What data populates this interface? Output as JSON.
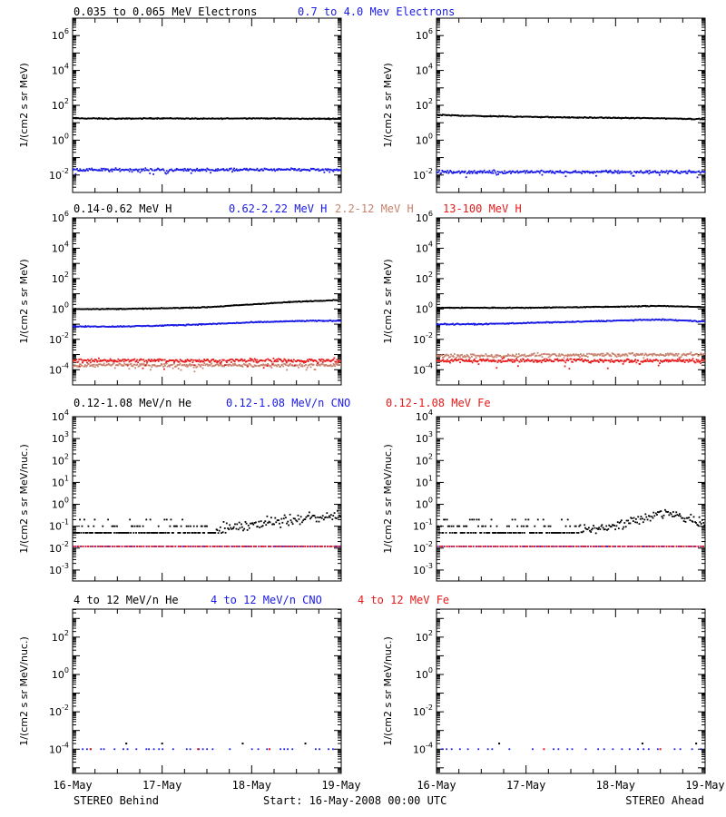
{
  "colors": {
    "black": "#000000",
    "blue": "#1a1ae6",
    "tan": "#c8826e",
    "red": "#e61a1a"
  },
  "footer": {
    "left": "STEREO Behind",
    "center": "Start: 16-May-2008 00:00 UTC",
    "right": "STEREO Ahead"
  },
  "x_axis": {
    "tick_labels": [
      "16-May",
      "17-May",
      "18-May",
      "19-May"
    ],
    "range_days": [
      0,
      3
    ]
  },
  "rows": [
    {
      "legend": [
        {
          "text": "0.035 to 0.065 MeV Electrons",
          "color": "black"
        },
        {
          "text": "0.7 to 4.0 Mev Electrons",
          "color": "blue"
        }
      ],
      "ylabel": "1/(cm2 s sr MeV)",
      "ylim_exp": [
        -3,
        7
      ],
      "tick_exps": [
        -2,
        0,
        2,
        4,
        6
      ]
    },
    {
      "legend": [
        {
          "text": "0.14-0.62 MeV H",
          "color": "black"
        },
        {
          "text": "0.62-2.22 MeV H",
          "color": "blue"
        },
        {
          "text": "2.2-12 MeV H",
          "color": "tan"
        },
        {
          "text": "13-100 MeV H",
          "color": "red"
        }
      ],
      "ylabel": "1/(cm2 s sr MeV)",
      "ylim_exp": [
        -5,
        6
      ],
      "tick_exps": [
        -4,
        -2,
        0,
        2,
        4,
        6
      ]
    },
    {
      "legend": [
        {
          "text": "0.12-1.08 MeV/n He",
          "color": "black"
        },
        {
          "text": "0.12-1.08 MeV/n CNO",
          "color": "blue"
        },
        {
          "text": "0.12-1.08 MeV Fe",
          "color": "red"
        }
      ],
      "ylabel": "1/(cm2 s sr MeV/nuc.)",
      "ylim_exp": [
        -3.5,
        4
      ],
      "tick_exps": [
        -3,
        -2,
        -1,
        0,
        1,
        2,
        3,
        4
      ]
    },
    {
      "legend": [
        {
          "text": "4 to 12 MeV/n He",
          "color": "black"
        },
        {
          "text": "4 to 12 MeV/n CNO",
          "color": "blue"
        },
        {
          "text": "4 to 12 MeV Fe",
          "color": "red"
        }
      ],
      "ylabel": "1/(cm2 s sr MeV/nuc.)",
      "ylim_exp": [
        -5.3,
        3.5
      ],
      "tick_exps": [
        -4,
        -2,
        0,
        2
      ]
    }
  ],
  "chart_data": [
    {
      "type": "scatter",
      "panel": "behind",
      "row": 0,
      "ylog": true,
      "ylim": [
        0.001,
        10000000
      ],
      "x_units": "days since 16-May-2008 00:00 UTC",
      "series": [
        {
          "name": "0.035 to 0.065 MeV Electrons",
          "color": "black",
          "x": [
            0,
            0.5,
            1,
            1.5,
            2,
            2.5,
            3
          ],
          "y": [
            18,
            17,
            18,
            17,
            18,
            17,
            17
          ]
        },
        {
          "name": "0.7 to 4.0 Mev Electrons",
          "color": "blue",
          "x": [
            0,
            0.5,
            1,
            1.5,
            2,
            2.5,
            3
          ],
          "y": [
            0.02,
            0.02,
            0.02,
            0.02,
            0.02,
            0.02,
            0.02
          ]
        }
      ]
    },
    {
      "type": "scatter",
      "panel": "ahead",
      "row": 0,
      "ylog": true,
      "ylim": [
        0.001,
        10000000
      ],
      "x_units": "days since 16-May-2008 00:00 UTC",
      "series": [
        {
          "name": "0.035 to 0.065 MeV Electrons",
          "color": "black",
          "x": [
            0,
            0.5,
            1,
            1.5,
            2,
            2.5,
            3
          ],
          "y": [
            28,
            24,
            22,
            20,
            19,
            18,
            16
          ]
        },
        {
          "name": "0.7 to 4.0 Mev Electrons",
          "color": "blue",
          "x": [
            0,
            0.5,
            1,
            1.5,
            2,
            2.5,
            3
          ],
          "y": [
            0.015,
            0.015,
            0.015,
            0.015,
            0.015,
            0.015,
            0.015
          ]
        }
      ]
    },
    {
      "type": "scatter",
      "panel": "behind",
      "row": 1,
      "ylog": true,
      "ylim": [
        1e-05,
        1000000
      ],
      "x_units": "days since 16-May-2008 00:00 UTC",
      "series": [
        {
          "name": "0.14-0.62 MeV H",
          "color": "black",
          "x": [
            0,
            0.5,
            1,
            1.5,
            2,
            2.5,
            3
          ],
          "y": [
            1.0,
            1.0,
            1.1,
            1.3,
            2.0,
            3.0,
            4.0
          ]
        },
        {
          "name": "0.62-2.22 MeV H",
          "color": "blue",
          "x": [
            0,
            0.5,
            1,
            1.5,
            2,
            2.5,
            3
          ],
          "y": [
            0.07,
            0.07,
            0.08,
            0.1,
            0.13,
            0.16,
            0.17
          ]
        },
        {
          "name": "2.2-12 MeV H",
          "color": "tan",
          "x": [
            0,
            0.5,
            1,
            1.5,
            2,
            2.5,
            3
          ],
          "y": [
            0.0002,
            0.0002,
            0.0002,
            0.0002,
            0.0002,
            0.0002,
            0.0002
          ]
        },
        {
          "name": "13-100 MeV H",
          "color": "red",
          "x": [
            0,
            0.5,
            1,
            1.5,
            2,
            2.5,
            3
          ],
          "y": [
            0.0004,
            0.0004,
            0.0004,
            0.0004,
            0.0004,
            0.0004,
            0.0004
          ]
        }
      ]
    },
    {
      "type": "scatter",
      "panel": "ahead",
      "row": 1,
      "ylog": true,
      "ylim": [
        1e-05,
        1000000
      ],
      "x_units": "days since 16-May-2008 00:00 UTC",
      "series": [
        {
          "name": "0.14-0.62 MeV H",
          "color": "black",
          "x": [
            0,
            0.5,
            1,
            1.5,
            2,
            2.5,
            3
          ],
          "y": [
            1.2,
            1.2,
            1.2,
            1.3,
            1.4,
            1.6,
            1.3
          ]
        },
        {
          "name": "0.62-2.22 MeV H",
          "color": "blue",
          "x": [
            0,
            0.5,
            1,
            1.5,
            2,
            2.5,
            3
          ],
          "y": [
            0.1,
            0.1,
            0.12,
            0.14,
            0.17,
            0.2,
            0.15
          ]
        },
        {
          "name": "2.2-12 MeV H",
          "color": "tan",
          "x": [
            0,
            0.5,
            1,
            1.5,
            2,
            2.5,
            3
          ],
          "y": [
            0.0008,
            0.0008,
            0.0009,
            0.0009,
            0.001,
            0.001,
            0.001
          ]
        },
        {
          "name": "13-100 MeV H",
          "color": "red",
          "x": [
            0,
            0.5,
            1,
            1.5,
            2,
            2.5,
            3
          ],
          "y": [
            0.0004,
            0.0004,
            0.0004,
            0.0004,
            0.0004,
            0.0004,
            0.0004
          ]
        }
      ]
    },
    {
      "type": "scatter",
      "panel": "behind",
      "row": 2,
      "ylog": true,
      "ylim": [
        0.0003,
        10000
      ],
      "x_units": "days since 16-May-2008 00:00 UTC",
      "series": [
        {
          "name": "0.12-1.08 MeV/n He",
          "color": "black",
          "x": [
            0,
            0.5,
            1,
            1.5,
            2,
            2.5,
            3
          ],
          "y": [
            0.05,
            0.05,
            0.05,
            0.07,
            0.12,
            0.2,
            0.3
          ]
        },
        {
          "name": "0.12-1.08 MeV/n CNO",
          "color": "blue",
          "x": [
            0,
            0.5,
            1,
            1.5,
            2,
            2.5,
            3
          ],
          "y": [
            0.012,
            0.012,
            0.012,
            0.012,
            0.012,
            0.012,
            0.012
          ]
        },
        {
          "name": "0.12-1.08 MeV Fe",
          "color": "red",
          "x": [
            0,
            0.5,
            1,
            1.5,
            2,
            2.5,
            3
          ],
          "y": [
            0.012,
            0.012,
            0.012,
            0.012,
            0.012,
            0.012,
            0.012
          ]
        }
      ]
    },
    {
      "type": "scatter",
      "panel": "ahead",
      "row": 2,
      "ylog": true,
      "ylim": [
        0.0003,
        10000
      ],
      "x_units": "days since 16-May-2008 00:00 UTC",
      "series": [
        {
          "name": "0.12-1.08 MeV/n He",
          "color": "black",
          "x": [
            0,
            0.5,
            1,
            1.5,
            2,
            2.5,
            3
          ],
          "y": [
            0.05,
            0.05,
            0.05,
            0.06,
            0.1,
            0.4,
            0.15
          ]
        },
        {
          "name": "0.12-1.08 MeV/n CNO",
          "color": "blue",
          "x": [
            0,
            0.5,
            1,
            1.5,
            2,
            2.5,
            3
          ],
          "y": [
            0.012,
            0.012,
            0.012,
            0.012,
            0.012,
            0.012,
            0.012
          ]
        },
        {
          "name": "0.12-1.08 MeV Fe",
          "color": "red",
          "x": [
            0,
            0.5,
            1,
            1.5,
            2,
            2.5,
            3
          ],
          "y": [
            0.012,
            0.012,
            0.012,
            0.012,
            0.012,
            0.012,
            0.012
          ]
        }
      ]
    },
    {
      "type": "scatter",
      "panel": "behind",
      "row": 3,
      "ylog": true,
      "ylim": [
        5e-06,
        3000
      ],
      "x_units": "days since 16-May-2008 00:00 UTC",
      "series": [
        {
          "name": "4 to 12 MeV/n He",
          "color": "black",
          "x": [
            0.6,
            1.0,
            1.9,
            2.6
          ],
          "y": [
            0.0002,
            0.0002,
            0.0002,
            0.0002
          ]
        },
        {
          "name": "4 to 12 MeV/n CNO",
          "color": "blue",
          "x": [
            0,
            0.5,
            1,
            1.5,
            2,
            2.5,
            3
          ],
          "y": [
            0.0001,
            0.0001,
            0.0001,
            0.0001,
            0.0001,
            0.0001,
            0.0001
          ]
        },
        {
          "name": "4 to 12 MeV Fe",
          "color": "red",
          "x": [
            0.2,
            1.4,
            2.2
          ],
          "y": [
            0.0001,
            0.0001,
            0.0001
          ]
        }
      ]
    },
    {
      "type": "scatter",
      "panel": "ahead",
      "row": 3,
      "ylog": true,
      "ylim": [
        5e-06,
        3000
      ],
      "x_units": "days since 16-May-2008 00:00 UTC",
      "series": [
        {
          "name": "4 to 12 MeV/n He",
          "color": "black",
          "x": [
            0.7,
            2.3,
            2.9
          ],
          "y": [
            0.0002,
            0.0002,
            0.0002
          ]
        },
        {
          "name": "4 to 12 MeV/n CNO",
          "color": "blue",
          "x": [
            0,
            0.5,
            1,
            1.5,
            2,
            2.5,
            3
          ],
          "y": [
            0.0001,
            0.0001,
            0.0001,
            0.0001,
            0.0001,
            0.0001,
            0.0001
          ]
        },
        {
          "name": "4 to 12 MeV Fe",
          "color": "red",
          "x": [
            1.2,
            2.5
          ],
          "y": [
            0.0001,
            0.0001
          ]
        }
      ]
    }
  ]
}
